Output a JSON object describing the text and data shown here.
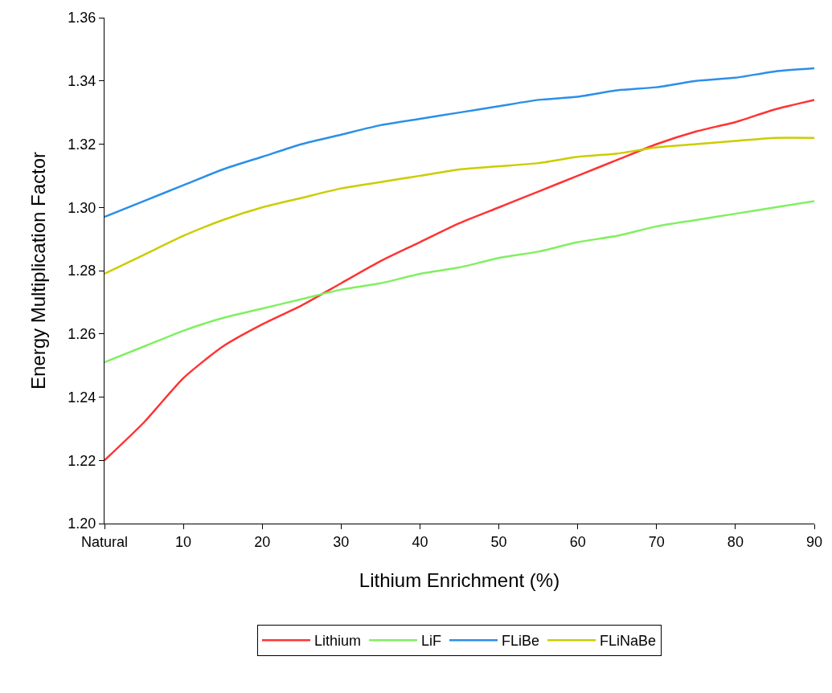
{
  "chart_data": {
    "type": "line",
    "xlabel": "Lithium Enrichment (%)",
    "ylabel": "Energy Multiplication Factor",
    "x": [
      0,
      5,
      10,
      15,
      20,
      25,
      30,
      35,
      40,
      45,
      50,
      55,
      60,
      65,
      70,
      75,
      80,
      85,
      90
    ],
    "series": [
      {
        "name": "Lithium",
        "color": "#ff3333",
        "values": [
          1.22,
          1.232,
          1.246,
          1.256,
          1.263,
          1.269,
          1.276,
          1.283,
          1.289,
          1.295,
          1.3,
          1.305,
          1.31,
          1.315,
          1.32,
          1.324,
          1.327,
          1.331,
          1.334
        ]
      },
      {
        "name": "LiF",
        "color": "#80f060",
        "values": [
          1.251,
          1.256,
          1.261,
          1.265,
          1.268,
          1.271,
          1.274,
          1.276,
          1.279,
          1.281,
          1.284,
          1.286,
          1.289,
          1.291,
          1.294,
          1.296,
          1.298,
          1.3,
          1.302
        ]
      },
      {
        "name": "FLiBe",
        "color": "#2b8fe8",
        "values": [
          1.297,
          1.302,
          1.307,
          1.312,
          1.316,
          1.32,
          1.323,
          1.326,
          1.328,
          1.33,
          1.332,
          1.334,
          1.335,
          1.337,
          1.338,
          1.34,
          1.341,
          1.343,
          1.344
        ]
      },
      {
        "name": "FLiNaBe",
        "color": "#cccc00",
        "values": [
          1.279,
          1.285,
          1.291,
          1.296,
          1.3,
          1.303,
          1.306,
          1.308,
          1.31,
          1.312,
          1.313,
          1.314,
          1.316,
          1.317,
          1.319,
          1.32,
          1.321,
          1.322,
          1.322
        ]
      }
    ],
    "xlim": [
      0,
      90
    ],
    "xticks": [
      {
        "value": 0,
        "label": "Natural"
      },
      10,
      20,
      30,
      40,
      50,
      60,
      70,
      80,
      90
    ],
    "ylim": [
      1.2,
      1.36
    ],
    "yticks": [
      {
        "value": 1.2,
        "label": "1.20"
      },
      1.22,
      1.24,
      1.26,
      1.28,
      {
        "value": 1.3,
        "label": "1.30"
      },
      1.32,
      1.34,
      1.36
    ],
    "grid": false,
    "legend": "bottom",
    "marker": "none",
    "line_style": "solid"
  }
}
